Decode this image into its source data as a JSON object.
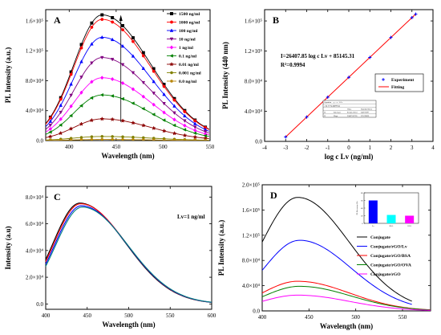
{
  "chart_data": [
    {
      "panel": "A",
      "type": "line",
      "xlabel": "Wavelength (nm)",
      "ylabel": "PL Intensity (a.u.)",
      "xlim": [
        375,
        550
      ],
      "ylim": [
        0,
        175000
      ],
      "xticks": [
        {
          "v": 400,
          "t": "400"
        },
        {
          "v": 450,
          "t": "450"
        },
        {
          "v": 500,
          "t": "500"
        },
        {
          "v": 550,
          "t": "550"
        }
      ],
      "yticks": [
        {
          "v": 0,
          "t": "0.0"
        },
        {
          "v": 40000,
          "t": "4.0×10⁴"
        },
        {
          "v": 80000,
          "t": "8.0×10⁴"
        },
        {
          "v": 120000,
          "t": "1.2×10⁵"
        },
        {
          "v": 160000,
          "t": "1.6×10⁵"
        }
      ],
      "peak_x": 435,
      "legend_position": "top-right",
      "series": [
        {
          "name": "1500 ng/ml",
          "color": "#000000",
          "marker": "square",
          "peak": 168000
        },
        {
          "name": "1000 ng/ml",
          "color": "#ff0000",
          "marker": "circle",
          "peak": 162000
        },
        {
          "name": "100 ng/ml",
          "color": "#0000ff",
          "marker": "triangle-up",
          "peak": 138000
        },
        {
          "name": "10 ng/ml",
          "color": "#800080",
          "marker": "triangle-down",
          "peak": 111000
        },
        {
          "name": "1 ng/ml",
          "color": "#ff00ff",
          "marker": "diamond",
          "peak": 84000
        },
        {
          "name": "0.1 ng/ml",
          "color": "#008000",
          "marker": "triangle-left",
          "peak": 61000
        },
        {
          "name": "0.01 ng/ml",
          "color": "#8b0000",
          "marker": "star",
          "peak": 29000
        },
        {
          "name": "0.001 ng/ml",
          "color": "#808000",
          "marker": "dot",
          "peak": 5500
        },
        {
          "name": "0.0 ng/ml",
          "color": "#b8860b",
          "marker": "dot",
          "peak": 1500
        }
      ]
    },
    {
      "panel": "B",
      "type": "scatter",
      "xlabel": "log c Lv (ng/ml)",
      "ylabel": "PL Intensity (440 nm)",
      "xlim": [
        -4,
        4
      ],
      "ylim": [
        0,
        175000
      ],
      "xticks": [
        {
          "v": -4,
          "t": "-4"
        },
        {
          "v": -3,
          "t": "-3"
        },
        {
          "v": -2,
          "t": "-2"
        },
        {
          "v": -1,
          "t": "-1"
        },
        {
          "v": 0,
          "t": "0"
        },
        {
          "v": 1,
          "t": "1"
        },
        {
          "v": 2,
          "t": "2"
        },
        {
          "v": 3,
          "t": "3"
        },
        {
          "v": 4,
          "t": "4"
        }
      ],
      "yticks": [
        {
          "v": 0,
          "t": "0.0"
        },
        {
          "v": 40000,
          "t": "4.0×10⁴"
        },
        {
          "v": 80000,
          "t": "8.0×10⁴"
        },
        {
          "v": 120000,
          "t": "1.2×10⁵"
        },
        {
          "v": 160000,
          "t": "1.6×10⁵"
        }
      ],
      "x": [
        -3,
        -2,
        -1,
        0,
        1,
        2,
        3,
        3.18
      ],
      "y": [
        5900,
        32300,
        58700,
        85100,
        111500,
        138000,
        164400,
        169000
      ],
      "fit": {
        "slope": 26407.85,
        "intercept": 85145.31,
        "x_range": [
          -3,
          3.2
        ]
      },
      "equation": "I=26407.85 log c Lv + 85145.31",
      "r2": "R²=0.9994",
      "legend_position": "right-middle",
      "series": [
        {
          "name": "Experiment",
          "color": "#0000ff",
          "marker": "cross"
        },
        {
          "name": "Fitting",
          "color": "#ff0000",
          "marker": "line"
        }
      ],
      "inset_table": [
        [
          "Equation",
          "y = a + b*x",
          "",
          ""
        ],
        [
          "Adj. R-Square",
          "0.99944",
          "",
          ""
        ],
        [
          "",
          "",
          "Value",
          "Standard Error"
        ],
        [
          "B",
          "Intercept",
          "85145.31253",
          "649.70297"
        ],
        [
          "B",
          "Slope",
          "26407.85705",
          "325.39066"
        ]
      ]
    },
    {
      "panel": "C",
      "type": "line",
      "xlabel": "Wavelength (nm)",
      "ylabel": "Intensity (a.u)",
      "xlim": [
        400,
        600
      ],
      "ylim": [
        -4000,
        88000
      ],
      "xticks": [
        {
          "v": 400,
          "t": "400"
        },
        {
          "v": 450,
          "t": "450"
        },
        {
          "v": 500,
          "t": "500"
        },
        {
          "v": 550,
          "t": "550"
        },
        {
          "v": 600,
          "t": "600"
        }
      ],
      "yticks": [
        {
          "v": 0,
          "t": "0.0"
        },
        {
          "v": 20000,
          "t": "2.0×10⁴"
        },
        {
          "v": 40000,
          "t": "4.0×10⁴"
        },
        {
          "v": 60000,
          "t": "6.0×10⁴"
        },
        {
          "v": 80000,
          "t": "8.0×10⁴"
        }
      ],
      "annotation": "Lv=1 ng/ml",
      "series": [
        {
          "color": "#000000",
          "peak": 75500,
          "peak_x": 441
        },
        {
          "color": "#ff0000",
          "peak": 75000,
          "peak_x": 442
        },
        {
          "color": "#0000ff",
          "peak": 73500,
          "peak_x": 443
        },
        {
          "color": "#008080",
          "peak": 72500,
          "peak_x": 444
        }
      ]
    },
    {
      "panel": "D",
      "type": "line",
      "xlabel": "Wavelength (nm)",
      "ylabel": "PL Intensity (a.u.)",
      "xlim": [
        400,
        580
      ],
      "ylim": [
        0,
        200000
      ],
      "xticks": [
        {
          "v": 400,
          "t": "400"
        },
        {
          "v": 450,
          "t": "450"
        },
        {
          "v": 500,
          "t": "500"
        },
        {
          "v": 550,
          "t": "550"
        }
      ],
      "yticks": [
        {
          "v": 0,
          "t": "0.0"
        },
        {
          "v": 40000,
          "t": "4.0×10⁴"
        },
        {
          "v": 80000,
          "t": "8.0×10⁴"
        },
        {
          "v": 120000,
          "t": "1.2×10⁵"
        },
        {
          "v": 160000,
          "t": "1.6×10⁵"
        },
        {
          "v": 200000,
          "t": "2.0×10⁵"
        }
      ],
      "legend_position": "right",
      "series": [
        {
          "name": "Conjugate",
          "color": "#000000",
          "peak": 180000,
          "peak_x": 438,
          "xmax": 560
        },
        {
          "name": "Conjugate/rGO/Lv",
          "color": "#0000ff",
          "peak": 112000,
          "peak_x": 440,
          "xmax": 560
        },
        {
          "name": "Conjugate/rGO/BSA",
          "color": "#ff0000",
          "peak": 47000,
          "peak_x": 438,
          "xmax": 580
        },
        {
          "name": "Conjugate/rGO/OVA",
          "color": "#008000",
          "peak": 39000,
          "peak_x": 440,
          "xmax": 580
        },
        {
          "name": "Conjugate/rGO",
          "color": "#ff00ff",
          "peak": 25000,
          "peak_x": 438,
          "xmax": 580
        }
      ],
      "inset": {
        "type": "bar",
        "categories": [
          "Lv",
          "BSA",
          "OVA"
        ],
        "values": [
          60,
          22,
          20
        ],
        "colors": [
          "#0000ff",
          "#00ffff",
          "#ff00ff"
        ],
        "ylim": [
          0,
          80
        ],
        "yticks": [
          {
            "v": 0,
            "t": "0"
          },
          {
            "v": 20,
            "t": "20"
          },
          {
            "v": 40,
            "t": "40"
          },
          {
            "v": 60,
            "t": "60"
          },
          {
            "v": 80,
            "t": "80"
          }
        ],
        "ylabel": "PL Recovery (%)"
      }
    }
  ]
}
